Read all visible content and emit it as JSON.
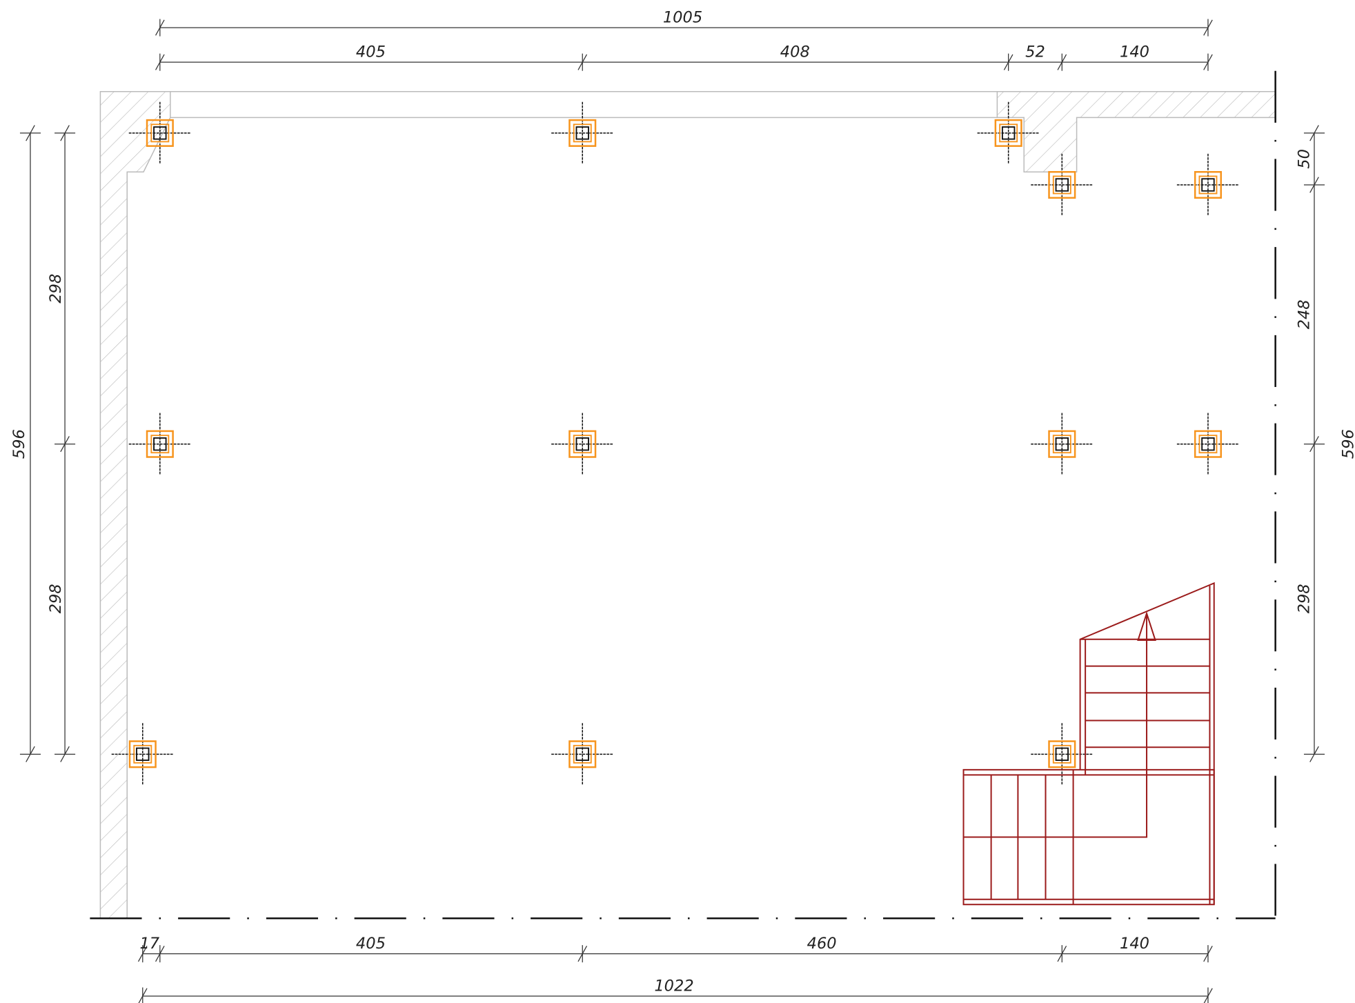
{
  "dimensions": {
    "top_total": "1005",
    "top": [
      "405",
      "408",
      "52",
      "140"
    ],
    "left_total": "596",
    "left": [
      "298",
      "298"
    ],
    "right": [
      "50",
      "248",
      "298"
    ],
    "right_total": "596",
    "bottom": [
      "17",
      "405",
      "460",
      "140"
    ],
    "bottom_total": "1022"
  }
}
